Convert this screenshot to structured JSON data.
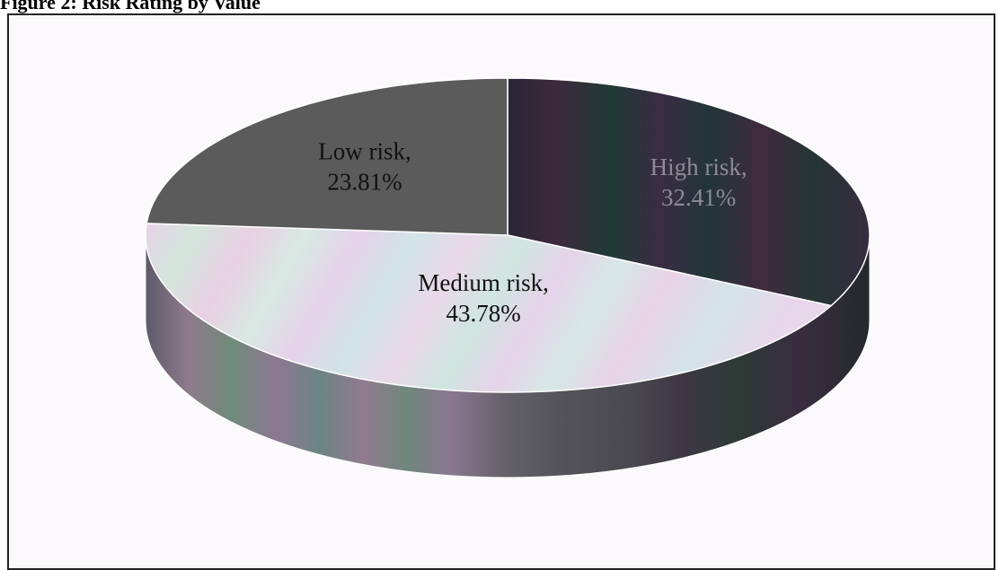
{
  "figure": {
    "title": "Figure 2: Risk Rating by Value"
  },
  "chart_data": {
    "type": "pie",
    "style": "3d",
    "title": "",
    "slices": [
      {
        "label": "High risk",
        "value": 32.41,
        "display": "32.41%",
        "color": "#2c2a3a",
        "text_color": "#8e8a96"
      },
      {
        "label": "Medium risk",
        "value": 43.78,
        "display": "43.78%",
        "color": "#d9cfe6",
        "text_color": "#111111"
      },
      {
        "label": "Low risk",
        "value": 23.81,
        "display": "23.81%",
        "color": "#5a5a5a",
        "text_color": "#111111"
      }
    ]
  }
}
